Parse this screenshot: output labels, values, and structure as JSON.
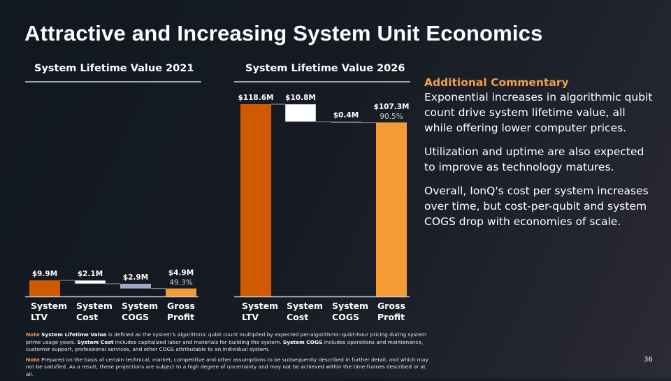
{
  "slide": {
    "title": "Attractive and Increasing System Unit Economics",
    "page_number": "36"
  },
  "commentary": {
    "heading": "Additional Commentary",
    "paragraphs": [
      "Exponential increases in algorithmic qubit count drive system lifetime value, all while offering lower computer prices.",
      "Utilization and uptime are also expected to improve as technology matures.",
      "Overall, IonQ's cost per system increases over time, but cost-per-qubit and system COGS drop with economies of scale."
    ]
  },
  "notes": {
    "tag": "Note",
    "note1": {
      "t1": "System Lifetime Value",
      "t2": " is defined as the system’s algorithmic qubit count multiplied by expected per-algorithmic-qubit-hour pricing during system prime usage years. ",
      "t3": "System Cost",
      "t4": " includes capitalized labor and materials for building the system. ",
      "t5": "System COGS",
      "t6": " includes operations and maintenance, customer support, professional services, and other COGS attributable to an individual system."
    },
    "note2": " Prepared on the basis of certain technical, market, competitive and other assumptions to be subsequently described in further detail, and which may not be satisfied. As a result, these projections are subject to a high degree of uncertainty and may not be achieved within the time-frames described or at all."
  },
  "colors": {
    "ltv": "#d05a00",
    "cost": "#ffffff",
    "cogs": "#9fa9c6",
    "profit": "#f59b35",
    "connector": "#7d8593",
    "axis": "#c9ced6",
    "accent": "#f0a04b"
  },
  "chart_data": [
    {
      "type": "waterfall",
      "title": "System  Lifetime Value 2021",
      "unit": "$M",
      "categories": [
        "System LTV",
        "System Cost",
        "System COGS",
        "Gross Profit"
      ],
      "category_lines": [
        [
          "System",
          "LTV"
        ],
        [
          "System",
          "Cost"
        ],
        [
          "System",
          "COGS"
        ],
        [
          "Gross",
          "Profit"
        ]
      ],
      "values": [
        9.9,
        -2.1,
        -2.9,
        4.9
      ],
      "kinds": [
        "total",
        "decrease",
        "decrease",
        "total"
      ],
      "value_labels": [
        "$9.9M",
        "$2.1M",
        "$2.9M",
        "$4.9M"
      ],
      "margin_label": "49.3%",
      "ylim": [
        0,
        118.6
      ]
    },
    {
      "type": "waterfall",
      "title": "System  Lifetime Value 2026",
      "unit": "$M",
      "categories": [
        "System LTV",
        "System Cost",
        "System COGS",
        "Gross Profit"
      ],
      "category_lines": [
        [
          "System",
          "LTV"
        ],
        [
          "System",
          "Cost"
        ],
        [
          "System",
          "COGS"
        ],
        [
          "Gross",
          "Profit"
        ]
      ],
      "values": [
        118.6,
        -10.8,
        -0.4,
        107.3
      ],
      "kinds": [
        "total",
        "decrease",
        "decrease",
        "total"
      ],
      "value_labels": [
        "$118.6M",
        "$10.8M",
        "$0.4M",
        "$107.3M"
      ],
      "margin_label": "90.5%",
      "ylim": [
        0,
        118.6
      ]
    }
  ]
}
